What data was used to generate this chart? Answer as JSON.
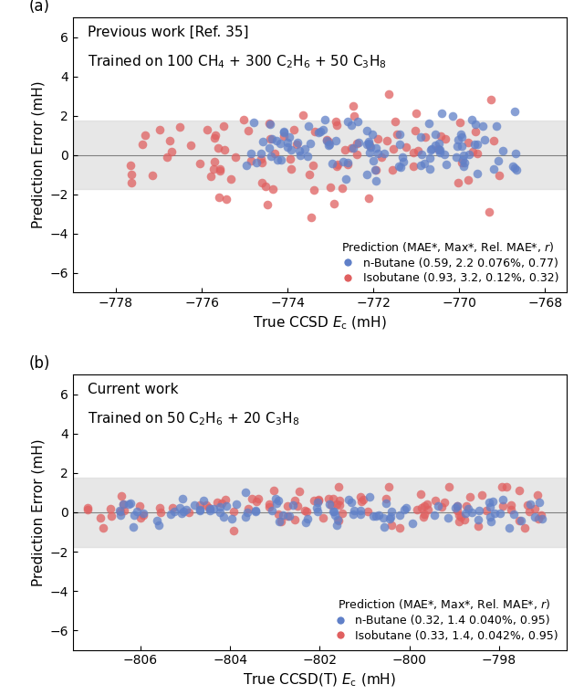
{
  "panel_a": {
    "title_line1": "Previous work [Ref. 35]",
    "title_line2": "Trained on 100 CH$_4$ + 300 C$_2$H$_6$ + 50 C$_3$H$_8$",
    "xlabel": "True CCSD $E_\\mathrm{c}$ (mH)",
    "ylabel": "Prediction Error (mH)",
    "xlim": [
      -779,
      -767.5
    ],
    "ylim": [
      -7,
      7
    ],
    "xticks": [
      -778,
      -776,
      -774,
      -772,
      -770,
      -768
    ],
    "yticks": [
      -6,
      -4,
      -2,
      0,
      2,
      4,
      6
    ],
    "band_y": 1.75,
    "legend_title": "Prediction (MAE*, Max*, Rel. MAE*, $r$)",
    "legend_blue": "n-Butane (0.59, 2.2 0.076%, 0.77)",
    "legend_red": "Isobutane (0.93, 3.2, 0.12%, 0.32)",
    "panel_label": "(a)"
  },
  "panel_b": {
    "title_line1": "Current work",
    "title_line2": "Trained on 50 C$_2$H$_6$ + 20 C$_3$H$_8$",
    "xlabel": "True CCSD(T) $E_\\mathrm{c}$ (mH)",
    "ylabel": "Prediction Error (mH)",
    "xlim": [
      -807.5,
      -796.5
    ],
    "ylim": [
      -7,
      7
    ],
    "xticks": [
      -806,
      -804,
      -802,
      -800,
      -798
    ],
    "yticks": [
      -6,
      -4,
      -2,
      0,
      2,
      4,
      6
    ],
    "band_y": 1.75,
    "legend_title": "Prediction (MAE*, Max*, Rel. MAE*, $r$)",
    "legend_blue": "n-Butane (0.32, 1.4 0.040%, 0.95)",
    "legend_red": "Isobutane (0.33, 1.4, 0.042%, 0.95)",
    "panel_label": "(b)"
  },
  "blue_color": "#6080c8",
  "red_color": "#e06060",
  "band_color": "#d8d8d8",
  "band_alpha": 0.6,
  "marker_size": 48,
  "marker_alpha": 0.75,
  "font_size_label": 11,
  "font_size_tick": 10,
  "font_size_legend": 9,
  "font_size_annot": 11,
  "font_size_panel": 12,
  "seed_a_blue": 42,
  "seed_a_red": 99,
  "seed_b_blue": 7,
  "seed_b_red": 13,
  "n_blue_a": 110,
  "n_red_a": 100,
  "n_blue_b": 100,
  "n_red_b": 100
}
